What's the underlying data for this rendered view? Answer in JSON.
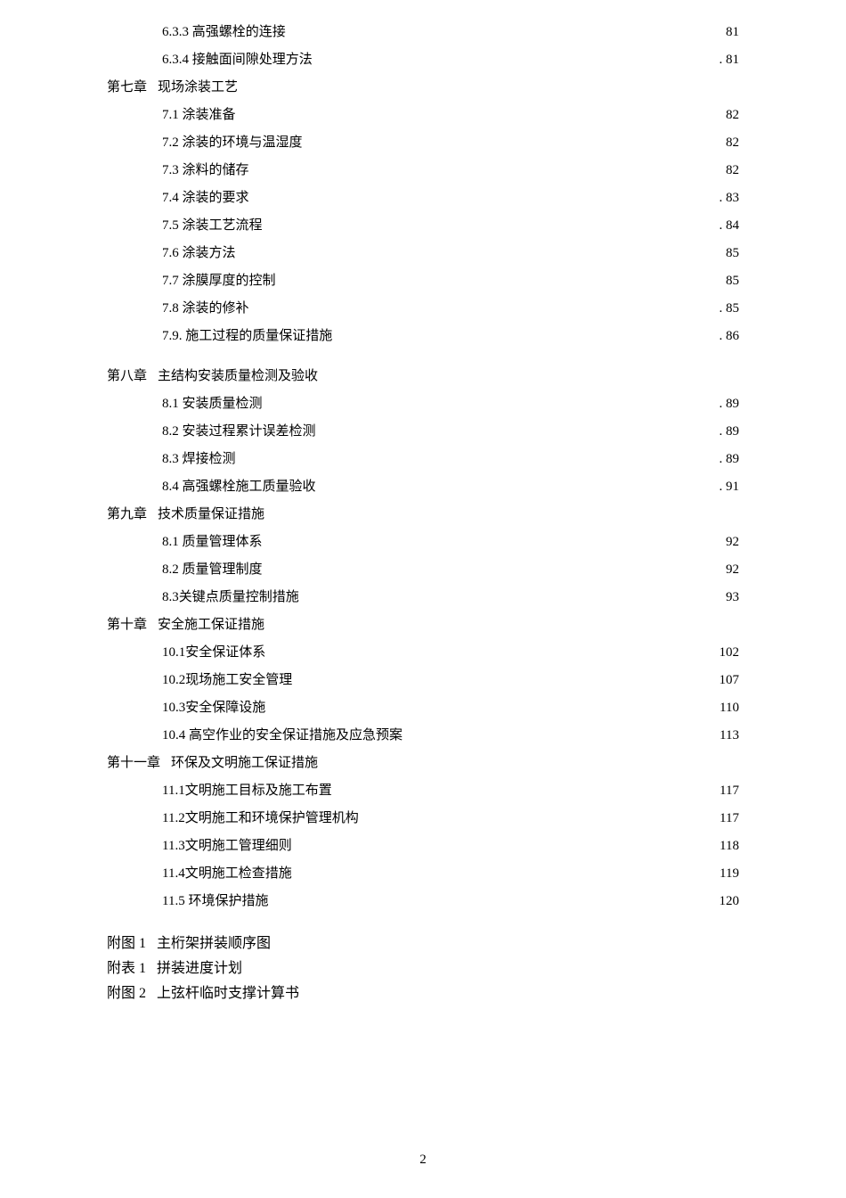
{
  "lines": [
    {
      "type": "toc",
      "indent": 1,
      "label": "6.3.3 高强螺栓的连接 ",
      "page": "81"
    },
    {
      "type": "toc",
      "indent": 1,
      "label": "6.3.4 接触面间隙处理方法",
      "page": ". 81"
    },
    {
      "type": "chapter",
      "prefix": "第七章",
      "title": "现场涂装工艺"
    },
    {
      "type": "toc",
      "indent": 1,
      "label": "7.1 涂装准备",
      "page": " 82"
    },
    {
      "type": "toc",
      "indent": 1,
      "label": "7.2 涂装的环境与温湿度",
      "page": "  82"
    },
    {
      "type": "toc",
      "indent": 1,
      "label": "7.3 涂料的储存",
      "page": " 82"
    },
    {
      "type": "toc",
      "indent": 1,
      "label": "7.4 涂装的要求",
      "page": ".   83"
    },
    {
      "type": "toc",
      "indent": 1,
      "label": "7.5 涂装工艺流程",
      "page": ".   84"
    },
    {
      "type": "toc",
      "indent": 1,
      "label": "7.6 涂装方法",
      "page": " 85"
    },
    {
      "type": "toc",
      "indent": 1,
      "label": "7.7 涂膜厚度的控制",
      "page": " 85"
    },
    {
      "type": "toc",
      "indent": 1,
      "label": "7.8 涂装的修补",
      "page": ". 85"
    },
    {
      "type": "toc",
      "indent": 1,
      "label": "7.9. 施工过程的质量保证措施",
      "page": ". 86"
    },
    {
      "type": "gap"
    },
    {
      "type": "chapter",
      "prefix": "第八章",
      "title": "主结构安装质量检测及验收"
    },
    {
      "type": "toc",
      "indent": 1,
      "label": "8.1 安装质量检测 ",
      "page": ". 89"
    },
    {
      "type": "toc",
      "indent": 1,
      "label": "8.2 安装过程累计误差检测 ",
      "page": ". 89"
    },
    {
      "type": "toc",
      "indent": 1,
      "label": "8.3 焊接检测  ",
      "page": ". 89"
    },
    {
      "type": "toc",
      "indent": 1,
      "label": "8.4 高强螺栓施工质量验收  ",
      "page": ". 91"
    },
    {
      "type": "chapter",
      "prefix": "第九章",
      "title": "技术质量保证措施"
    },
    {
      "type": "toc",
      "indent": 1,
      "label": "8.1 质量管理体系",
      "page": "92"
    },
    {
      "type": "toc",
      "indent": 1,
      "label": "8.2 质量管理制度",
      "page": "92"
    },
    {
      "type": "toc",
      "indent": 1,
      "label": "8.3关键点质量控制措施",
      "page": "93"
    },
    {
      "type": "chapter",
      "prefix": "第十章",
      "title": "安全施工保证措施"
    },
    {
      "type": "toc",
      "indent": 1,
      "label": "10.1安全保证体系 ",
      "page": "102"
    },
    {
      "type": "toc",
      "indent": 1,
      "label": "10.2现场施工安全管理 ",
      "page": "  107"
    },
    {
      "type": "toc",
      "indent": 1,
      "label": "10.3安全保障设施 ",
      "page": " 110"
    },
    {
      "type": "toc",
      "indent": 1,
      "label": "10.4 高空作业的安全保证措施及应急预案 ",
      "page": "113"
    },
    {
      "type": "chapter",
      "prefix": "第十一章",
      "title": "环保及文明施工保证措施"
    },
    {
      "type": "toc",
      "indent": 1,
      "label": "11.1文明施工目标及施工布置 ",
      "page": "117"
    },
    {
      "type": "toc",
      "indent": 1,
      "label": "11.2文明施工和环境保护管理机构 ",
      "page": "117"
    },
    {
      "type": "toc",
      "indent": 1,
      "label": "11.3文明施工管理细则 ",
      "page": "118"
    },
    {
      "type": "toc",
      "indent": 1,
      "label": "11.4文明施工检查措施  ",
      "page": " 119"
    },
    {
      "type": "toc",
      "indent": 1,
      "label": "11.5 环境保护措施 ",
      "page": " 120"
    },
    {
      "type": "gap"
    },
    {
      "type": "appendix",
      "prefix": "附图 1",
      "title": "主桁架拼装顺序图"
    },
    {
      "type": "appendix",
      "prefix": "附表 1",
      "title": "拼装进度计划"
    },
    {
      "type": "appendix",
      "prefix": "附图 2",
      "title": "上弦杆临时支撑计算书"
    }
  ],
  "page_number": "2"
}
